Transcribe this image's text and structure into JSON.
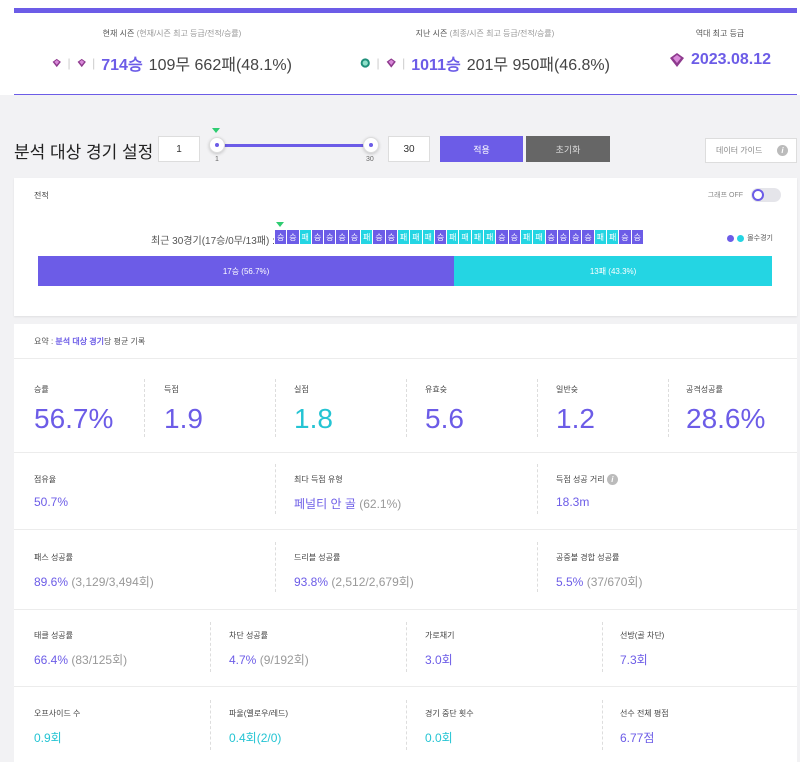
{
  "season": {
    "current": {
      "label": "현재 시즌",
      "sub": "(현재/시즌 최고 등급/전적/승률)",
      "wins": "714승",
      "rest": "109무 662패(48.1%)"
    },
    "previous": {
      "label": "지난 시즌",
      "sub": "(최종/시즌 최고 등급/전적/승률)",
      "wins": "1011승",
      "rest": "201무 950패(46.8%)"
    },
    "best": {
      "label": "역대 최고 등급",
      "date": "2023.08.12"
    },
    "colors": {
      "gem_purple": "#8e3a8e",
      "gem_teal": "#1f8f7a"
    }
  },
  "setting": {
    "title": "분석 대상 경기 설정",
    "from": "1",
    "to": "30",
    "slider_min": "1",
    "slider_max": "30",
    "apply": "적용",
    "reset": "초기화",
    "guide": "데이터 가이드",
    "info": "i"
  },
  "record": {
    "title": "전적",
    "toggle_label": "그래프 OFF",
    "recent_label": "최근 30경기(17승/0무/13패) :",
    "results": [
      "승",
      "승",
      "패",
      "승",
      "승",
      "승",
      "승",
      "패",
      "승",
      "승",
      "패",
      "패",
      "패",
      "승",
      "패",
      "패",
      "패",
      "패",
      "승",
      "승",
      "패",
      "패",
      "승",
      "승",
      "승",
      "승",
      "패",
      "패",
      "승",
      "승"
    ],
    "legend": "몰수경기",
    "win_label": "17승 (56.7%)",
    "loss_label": "13패 (43.3%)",
    "win_fraction": 0.567,
    "colors": {
      "win": "#6c5ce7",
      "loss": "#24d5e3"
    }
  },
  "summary": {
    "head_prefix": "요약 : ",
    "head_accent": "분석 대상 경기",
    "head_suffix": "당 평균 기록",
    "row1": [
      {
        "label": "승률",
        "value": "56.7%"
      },
      {
        "label": "득점",
        "value": "1.9"
      },
      {
        "label": "실점",
        "value": "1.8"
      },
      {
        "label": "유효슛",
        "value": "5.6"
      },
      {
        "label": "일반슛",
        "value": "1.2"
      },
      {
        "label": "공격성공률",
        "value": "28.6%"
      }
    ],
    "row2": [
      {
        "label": "점유율",
        "value": "50.7%",
        "extra": ""
      },
      {
        "label": "최다 득점 유형",
        "value": "페널티 안 골",
        "extra": "(62.1%)"
      },
      {
        "label": "득점 성공 거리",
        "value": "18.3m",
        "extra": ""
      }
    ],
    "row3": [
      {
        "label": "패스 성공률",
        "value": "89.6%",
        "extra": "(3,129/3,494회)"
      },
      {
        "label": "드리블 성공률",
        "value": "93.8%",
        "extra": "(2,512/2,679회)"
      },
      {
        "label": "공중볼 경합 성공률",
        "value": "5.5%",
        "extra": "(37/670회)"
      }
    ],
    "row4": [
      {
        "label": "태클 성공률",
        "value": "66.4%",
        "extra": "(83/125회)"
      },
      {
        "label": "차단 성공률",
        "value": "4.7%",
        "extra": "(9/192회)"
      },
      {
        "label": "가로채기",
        "value": "3.0회",
        "extra": ""
      },
      {
        "label": "선방(골 차단)",
        "value": "7.3회",
        "extra": ""
      }
    ],
    "row5": [
      {
        "label": "오프사이드 수",
        "value": "0.9회",
        "extra": ""
      },
      {
        "label": "파울(옐로우/레드)",
        "value": "0.4회(2/0)",
        "extra": ""
      },
      {
        "label": "경기 중단 횟수",
        "value": "0.0회",
        "extra": ""
      },
      {
        "label": "선수 전체 평점",
        "value": "6.77점",
        "extra": ""
      }
    ]
  }
}
